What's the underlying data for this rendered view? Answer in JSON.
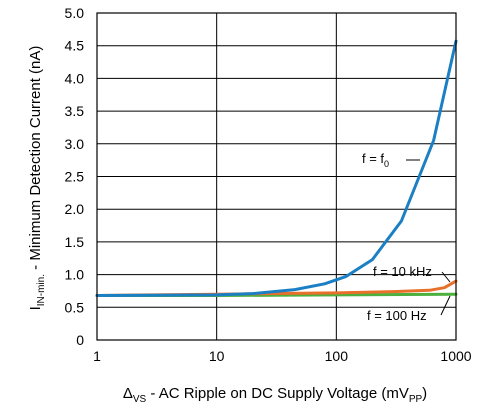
{
  "chart_data": {
    "type": "line",
    "xscale": "log",
    "xlim": [
      1,
      1000
    ],
    "ylim": [
      0,
      5.0
    ],
    "grid": true,
    "x_ticks": [
      "1",
      "10",
      "100",
      "1000"
    ],
    "y_ticks": [
      "0",
      "0.5",
      "1.0",
      "1.5",
      "2.0",
      "2.5",
      "3.0",
      "3.5",
      "4.0",
      "4.5",
      "5.0"
    ],
    "xlabel": {
      "pre": "Δ",
      "sub1": "VS",
      "mid": " - AC Ripple on DC Supply Voltage (mV",
      "sub2": "PP",
      "post": ")"
    },
    "ylabel": {
      "pre": "I",
      "sub": "IN-min.",
      "post": " - Minimum Detection Current (nA)"
    },
    "series": [
      {
        "name": "f = f0",
        "label_main": "f = f",
        "label_sub": "0",
        "color": "#1b7fc4",
        "x": [
          1,
          10,
          20,
          45,
          80,
          120,
          200,
          350,
          650,
          1000
        ],
        "y": [
          0.68,
          0.69,
          0.71,
          0.77,
          0.86,
          0.97,
          1.23,
          1.82,
          3.05,
          4.57
        ]
      },
      {
        "name": "f = 10 kHz",
        "label_main": "f = 10 kHz",
        "label_sub": "",
        "color": "#e8702a",
        "x": [
          1,
          10,
          100,
          300,
          600,
          800,
          1000
        ],
        "y": [
          0.68,
          0.7,
          0.72,
          0.74,
          0.76,
          0.8,
          0.9
        ]
      },
      {
        "name": "f = 100 Hz",
        "label_main": "f = 100 Hz",
        "label_sub": "",
        "color": "#4caf3e",
        "x": [
          1,
          10,
          100,
          1000
        ],
        "y": [
          0.68,
          0.68,
          0.69,
          0.7
        ]
      }
    ]
  }
}
